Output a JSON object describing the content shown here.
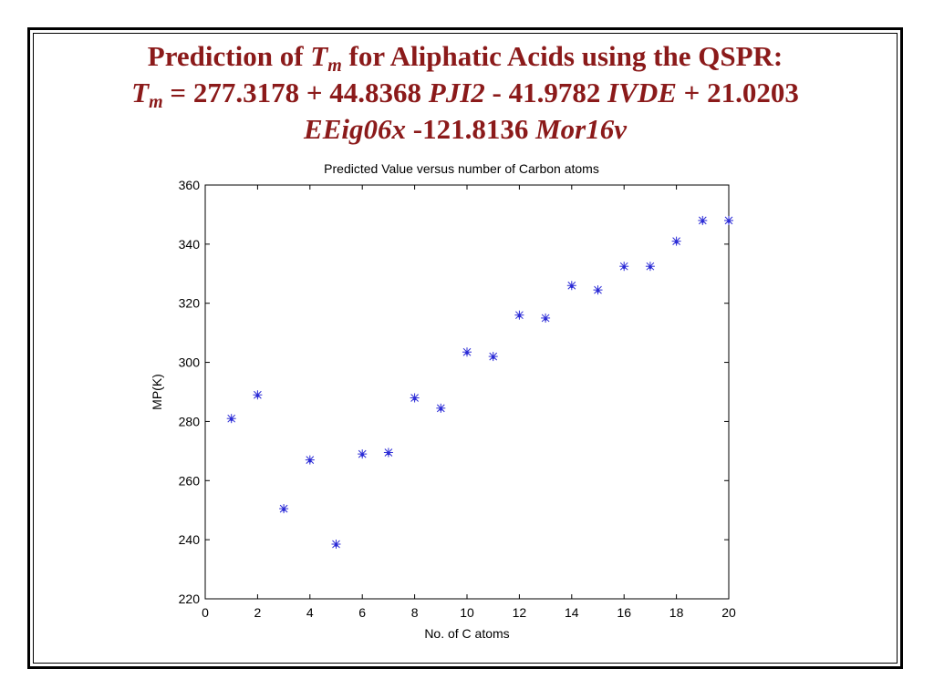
{
  "slide": {
    "title_line1_a": "Prediction of ",
    "title_line1_T": "T",
    "title_line1_sub": "m",
    "title_line1_b": " for Aliphatic Acids using the QSPR:",
    "title_line2_T": "T",
    "title_line2_sub": "m",
    "title_line2_a": " = 277.3178 + 44.8368 ",
    "title_line2_v1": "PJI2",
    "title_line2_b": " - 41.9782 ",
    "title_line2_v2": "IVDE",
    "title_line2_c": " + 21.0203",
    "title_line3_v3": "EEig06x",
    "title_line3_a": " -121.8136 ",
    "title_line3_v4": "Mor16v"
  },
  "chart_data": {
    "type": "scatter",
    "title": "Predicted Value versus number of Carbon atoms",
    "xlabel": "No. of C atoms",
    "ylabel": "MP(K)",
    "xlim": [
      0,
      20
    ],
    "ylim": [
      220,
      360
    ],
    "xticks": [
      0,
      2,
      4,
      6,
      8,
      10,
      12,
      14,
      16,
      18,
      20
    ],
    "yticks": [
      220,
      240,
      260,
      280,
      300,
      320,
      340,
      360
    ],
    "grid": false,
    "marker_color": "#2b2bd6",
    "points": [
      {
        "x": 1,
        "y": 281
      },
      {
        "x": 2,
        "y": 289
      },
      {
        "x": 3,
        "y": 250.5
      },
      {
        "x": 4,
        "y": 267
      },
      {
        "x": 5,
        "y": 238.5
      },
      {
        "x": 6,
        "y": 269
      },
      {
        "x": 7,
        "y": 269.5
      },
      {
        "x": 8,
        "y": 288
      },
      {
        "x": 9,
        "y": 284.5
      },
      {
        "x": 10,
        "y": 303.5
      },
      {
        "x": 11,
        "y": 302
      },
      {
        "x": 12,
        "y": 316
      },
      {
        "x": 13,
        "y": 315
      },
      {
        "x": 14,
        "y": 326
      },
      {
        "x": 15,
        "y": 324.5
      },
      {
        "x": 16,
        "y": 332.5
      },
      {
        "x": 17,
        "y": 332.5
      },
      {
        "x": 18,
        "y": 341
      },
      {
        "x": 19,
        "y": 348
      },
      {
        "x": 20,
        "y": 348
      }
    ]
  }
}
